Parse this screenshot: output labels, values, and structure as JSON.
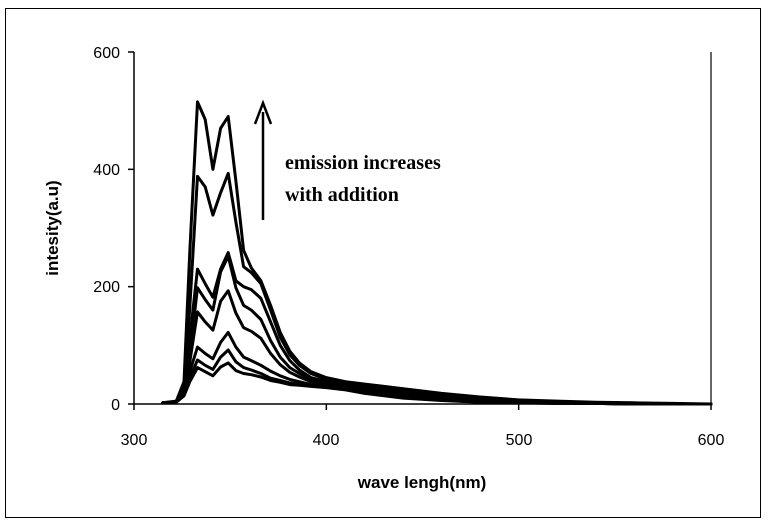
{
  "chart_data": {
    "type": "line",
    "title": "",
    "xlabel": "wave lengh(nm)",
    "ylabel": "intesity(a.u)",
    "xlim": [
      300,
      600
    ],
    "ylim": [
      0,
      600
    ],
    "x_ticks": [
      "300",
      "400",
      "500",
      "600"
    ],
    "y_ticks": [
      "0",
      "200",
      "400",
      "600"
    ],
    "grid": false,
    "legend": "none",
    "annotation": {
      "lines": [
        "emission increases",
        "with addition"
      ],
      "arrow": "up"
    },
    "series": [
      {
        "x": [
          315,
          322,
          326,
          329,
          333,
          337,
          341,
          345,
          349,
          353,
          357,
          361,
          366,
          371,
          376,
          381,
          386,
          392,
          400,
          410,
          420,
          440,
          460,
          480,
          500,
          520,
          540,
          560,
          580,
          600
        ],
        "y": [
          2,
          3,
          14,
          38,
          62,
          55,
          48,
          63,
          70,
          57,
          52,
          50,
          46,
          40,
          37,
          33,
          32,
          30,
          28,
          24,
          18,
          10,
          6,
          3,
          2,
          1,
          1,
          0,
          0,
          0
        ]
      },
      {
        "x": [
          315,
          322,
          326,
          329,
          333,
          337,
          341,
          345,
          349,
          353,
          357,
          361,
          366,
          371,
          376,
          381,
          386,
          392,
          400,
          410,
          420,
          440,
          460,
          480,
          500,
          520,
          540,
          560,
          580,
          600
        ],
        "y": [
          2,
          3,
          16,
          44,
          75,
          66,
          59,
          80,
          92,
          72,
          62,
          58,
          52,
          44,
          40,
          36,
          34,
          31,
          29,
          25,
          20,
          12,
          7,
          4,
          2,
          1,
          1,
          0,
          0,
          0
        ]
      },
      {
        "x": [
          315,
          322,
          326,
          329,
          333,
          337,
          341,
          345,
          349,
          353,
          357,
          361,
          366,
          371,
          376,
          381,
          386,
          392,
          400,
          410,
          420,
          440,
          460,
          480,
          500,
          520,
          540,
          560,
          580,
          600
        ],
        "y": [
          2,
          3,
          18,
          55,
          97,
          86,
          77,
          105,
          122,
          97,
          80,
          74,
          66,
          56,
          48,
          42,
          38,
          33,
          30,
          26,
          22,
          14,
          8,
          5,
          3,
          2,
          1,
          0,
          0,
          0
        ]
      },
      {
        "x": [
          315,
          322,
          326,
          329,
          333,
          337,
          341,
          345,
          349,
          353,
          357,
          361,
          366,
          371,
          376,
          381,
          386,
          392,
          400,
          410,
          420,
          440,
          460,
          480,
          500,
          520,
          540,
          560,
          580,
          600
        ],
        "y": [
          2,
          3,
          20,
          72,
          157,
          140,
          126,
          175,
          193,
          155,
          130,
          124,
          112,
          86,
          67,
          54,
          46,
          38,
          33,
          28,
          24,
          16,
          9,
          5,
          3,
          2,
          1,
          0,
          0,
          0
        ]
      },
      {
        "x": [
          315,
          322,
          326,
          329,
          333,
          337,
          341,
          345,
          349,
          353,
          357,
          361,
          366,
          371,
          376,
          381,
          386,
          392,
          400,
          410,
          420,
          440,
          460,
          480,
          500,
          520,
          540,
          560,
          580,
          600
        ],
        "y": [
          2,
          3,
          22,
          85,
          198,
          178,
          160,
          225,
          252,
          198,
          168,
          160,
          144,
          108,
          80,
          62,
          52,
          42,
          35,
          30,
          26,
          18,
          11,
          6,
          4,
          2,
          1,
          0,
          0,
          0
        ]
      },
      {
        "x": [
          315,
          322,
          326,
          329,
          333,
          337,
          341,
          345,
          349,
          353,
          357,
          361,
          366,
          371,
          376,
          381,
          386,
          392,
          400,
          410,
          420,
          440,
          460,
          480,
          500,
          520,
          540,
          560,
          580,
          600
        ],
        "y": [
          2,
          4,
          28,
          112,
          230,
          205,
          182,
          230,
          258,
          210,
          200,
          195,
          180,
          140,
          100,
          74,
          58,
          45,
          38,
          32,
          28,
          20,
          13,
          8,
          5,
          3,
          2,
          1,
          0,
          0
        ]
      },
      {
        "x": [
          315,
          322,
          326,
          329,
          333,
          337,
          341,
          345,
          349,
          353,
          357,
          361,
          366,
          371,
          376,
          381,
          386,
          392,
          400,
          410,
          420,
          440,
          460,
          480,
          500,
          520,
          540,
          560,
          580,
          600
        ],
        "y": [
          2,
          4,
          32,
          165,
          388,
          370,
          322,
          360,
          393,
          310,
          234,
          224,
          205,
          160,
          114,
          84,
          66,
          52,
          42,
          36,
          32,
          24,
          16,
          10,
          6,
          4,
          2,
          1,
          0,
          0
        ]
      },
      {
        "x": [
          315,
          322,
          326,
          329,
          333,
          337,
          341,
          345,
          349,
          353,
          357,
          361,
          366,
          371,
          376,
          381,
          386,
          392,
          400,
          410,
          420,
          440,
          460,
          480,
          500,
          520,
          540,
          560,
          580,
          600
        ],
        "y": [
          2,
          5,
          38,
          260,
          515,
          485,
          400,
          470,
          490,
          380,
          262,
          232,
          210,
          168,
          122,
          90,
          70,
          55,
          45,
          38,
          34,
          26,
          18,
          12,
          7,
          5,
          3,
          2,
          1,
          0
        ]
      }
    ]
  }
}
